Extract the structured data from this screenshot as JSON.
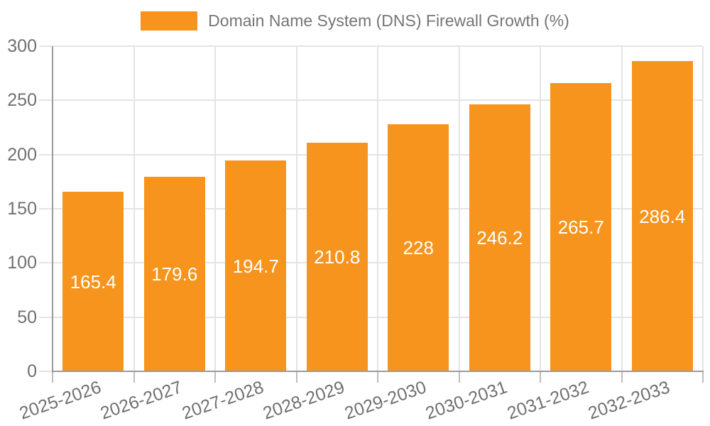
{
  "chart_data": {
    "type": "bar",
    "title": "Domain Name System (DNS) Firewall Growth (%)",
    "series_name": "Domain Name System (DNS) Firewall Growth (%)",
    "categories": [
      "2025-2026",
      "2026-2027",
      "2027-2028",
      "2028-2029",
      "2029-2030",
      "2030-2031",
      "2031-2032",
      "2032-2033"
    ],
    "values": [
      165.4,
      179.6,
      194.7,
      210.8,
      228,
      246.2,
      265.7,
      286.4
    ],
    "xlabel": "",
    "ylabel": "",
    "ylim": [
      0,
      300
    ],
    "yticks": [
      0,
      50,
      100,
      150,
      200,
      250,
      300
    ],
    "grid": "on",
    "legend_position": "top-center",
    "bar_color": "#F7941E",
    "value_label_color": "#FFFFFF",
    "axis_text_color": "#707070",
    "legend_text_color": "#757575",
    "gridline_color": "#E4E4E4",
    "axis_line_color": "#9A9A9A",
    "background_color": "#FFFFFF"
  }
}
